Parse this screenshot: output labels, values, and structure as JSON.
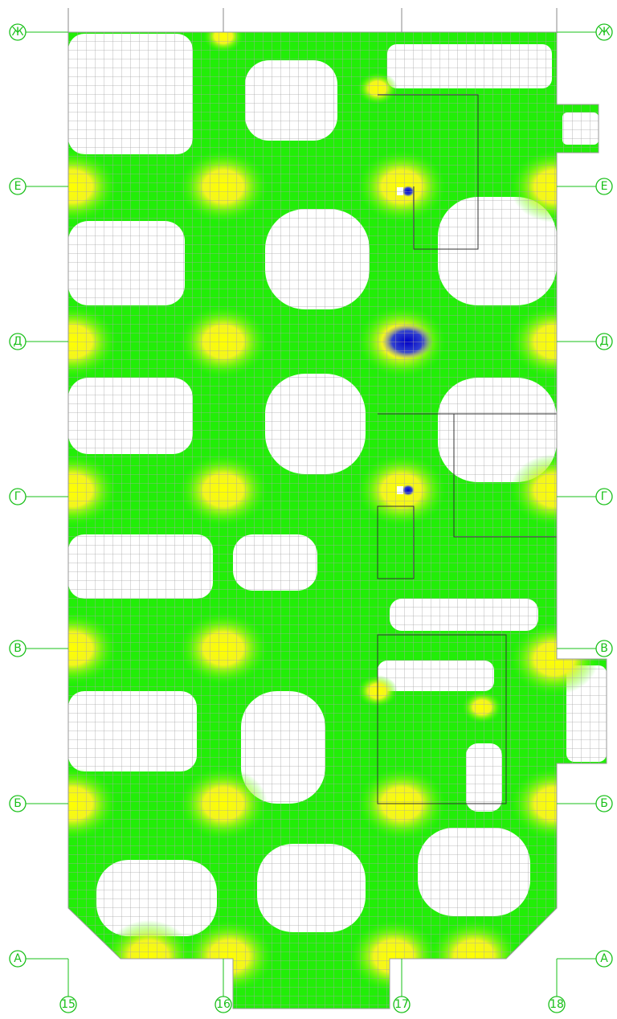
{
  "axes": {
    "rows": [
      "Ж",
      "Е",
      "Д",
      "Г",
      "В",
      "Б",
      "А"
    ],
    "columns": [
      "15",
      "16",
      "17",
      "18"
    ]
  }
}
